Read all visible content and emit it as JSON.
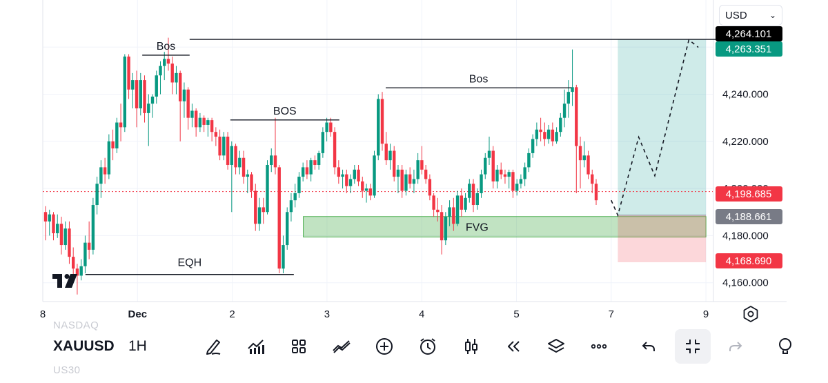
{
  "app": {
    "symbol": "XAUUSD",
    "timeframe": "1H",
    "symbol_above": "NASDAQ",
    "symbol_below": "US30",
    "currency": "USD"
  },
  "chart_data": {
    "type": "candlestick",
    "price_axis_ticks": [
      "4,160.000",
      "4,180.000",
      "4,200.000",
      "4,220.000",
      "4,240.000"
    ],
    "price_axis_values": [
      4160,
      4180,
      4200,
      4220,
      4240
    ],
    "time_axis_ticks": [
      {
        "label": "8",
        "value": 8
      },
      {
        "label": "Dec",
        "value": 9
      },
      {
        "label": "2",
        "value": 10
      },
      {
        "label": "3",
        "value": 11
      },
      {
        "label": "4",
        "value": 12
      },
      {
        "label": "5",
        "value": 13
      },
      {
        "label": "7",
        "value": 14
      },
      {
        "label": "9",
        "value": 15
      }
    ],
    "ylim": [
      4152,
      4280
    ],
    "xlim": [
      8,
      15.33
    ],
    "price_tags": [
      {
        "label": "4,264.101",
        "value": 4264.101,
        "color": "#000000"
      },
      {
        "label": "4,263.351",
        "value": 4263.351,
        "color": "#089981"
      },
      {
        "label": "4,198.685",
        "value": 4198.685,
        "color": "#f23645"
      },
      {
        "label": "4,188.661",
        "value": 4188.661,
        "color": "#787b86"
      },
      {
        "label": "4,168.690",
        "value": 4168.69,
        "color": "#f23645"
      }
    ],
    "current_price": 4198.685,
    "annotations": [
      {
        "text": "Bos",
        "x1": 9.05,
        "x2": 9.55,
        "y": 4256.6
      },
      {
        "text": "BOS",
        "x1": 9.98,
        "x2": 11.13,
        "y": 4229.1
      },
      {
        "text": "Bos",
        "x1": 11.62,
        "x2": 13.58,
        "y": 4242.7
      },
      {
        "text": "EQH",
        "x1": 8.45,
        "x2": 10.65,
        "y": 4163.5
      }
    ],
    "long_line": {
      "x1": 9.55,
      "x2": 15.33,
      "y": 4263.3
    },
    "fvg": {
      "text": "FVG",
      "x1": 10.75,
      "x2": 15.0,
      "y_top": 4188.1,
      "y_bottom": 4179.4
    },
    "position": {
      "x1": 14.07,
      "x2": 15.0,
      "target": 4263.35,
      "entry": 4188.66,
      "stop": 4168.69
    },
    "projection_path": [
      {
        "x": 14.0,
        "y": 4195.0
      },
      {
        "x": 14.07,
        "y": 4188.6
      },
      {
        "x": 14.29,
        "y": 4221.8
      },
      {
        "x": 14.46,
        "y": 4205.4
      },
      {
        "x": 14.82,
        "y": 4263.1
      },
      {
        "x": 14.92,
        "y": 4259.9
      }
    ],
    "colors": {
      "up": "#089981",
      "down": "#f23645",
      "fvg": "#4caf50",
      "long": "#26a69a",
      "short": "#f7a5ae"
    },
    "candles": [
      [
        4190.0,
        4192.5,
        4178.0,
        4186.0
      ],
      [
        4186.0,
        4191.0,
        4180.0,
        4189.0
      ],
      [
        4189.0,
        4190.0,
        4178.0,
        4181.0
      ],
      [
        4181.0,
        4189.0,
        4179.0,
        4185.0
      ],
      [
        4185.0,
        4188.0,
        4172.0,
        4176.0
      ],
      [
        4176.0,
        4186.0,
        4174.0,
        4183.0
      ],
      [
        4183.0,
        4186.0,
        4168.0,
        4171.0
      ],
      [
        4171.0,
        4175.0,
        4163.0,
        4166.0
      ],
      [
        4166.0,
        4168.0,
        4155.0,
        4163.0
      ],
      [
        4163.0,
        4170.0,
        4161.0,
        4167.0
      ],
      [
        4167.0,
        4180.0,
        4164.0,
        4177.0
      ],
      [
        4177.0,
        4186.0,
        4170.0,
        4174.0
      ],
      [
        4174.0,
        4196.0,
        4172.0,
        4193.0
      ],
      [
        4193.0,
        4205.0,
        4189.0,
        4202.0
      ],
      [
        4202.0,
        4212.0,
        4196.0,
        4209.0
      ],
      [
        4209.0,
        4213.0,
        4202.0,
        4206.0
      ],
      [
        4206.0,
        4223.0,
        4204.0,
        4220.0
      ],
      [
        4220.0,
        4225.0,
        4212.0,
        4217.0
      ],
      [
        4217.0,
        4230.0,
        4215.0,
        4228.0
      ],
      [
        4228.0,
        4236.0,
        4220.0,
        4226.0
      ],
      [
        4226.0,
        4257.0,
        4224.0,
        4256.0
      ],
      [
        4256.0,
        4257.0,
        4238.0,
        4242.0
      ],
      [
        4242.0,
        4249.0,
        4234.0,
        4246.0
      ],
      [
        4246.0,
        4250.0,
        4226.0,
        4234.0
      ],
      [
        4234.0,
        4249.0,
        4231.0,
        4246.0
      ],
      [
        4246.0,
        4248.0,
        4228.0,
        4232.0
      ],
      [
        4232.0,
        4240.0,
        4218.0,
        4236.0
      ],
      [
        4236.0,
        4240.0,
        4230.0,
        4239.0
      ],
      [
        4239.0,
        4250.0,
        4236.0,
        4248.0
      ],
      [
        4248.0,
        4254.0,
        4240.0,
        4252.0
      ],
      [
        4252.0,
        4258.0,
        4246.0,
        4255.0
      ],
      [
        4255.0,
        4264.0,
        4250.0,
        4253.0
      ],
      [
        4253.0,
        4256.0,
        4240.0,
        4245.0
      ],
      [
        4245.0,
        4252.0,
        4240.0,
        4249.0
      ],
      [
        4249.0,
        4250.0,
        4220.0,
        4237.0
      ],
      [
        4237.0,
        4245.0,
        4230.0,
        4242.0
      ],
      [
        4242.0,
        4243.0,
        4225.0,
        4230.0
      ],
      [
        4230.0,
        4236.0,
        4226.0,
        4233.0
      ],
      [
        4233.0,
        4234.0,
        4222.0,
        4226.0
      ],
      [
        4226.0,
        4232.0,
        4224.0,
        4230.0
      ],
      [
        4230.0,
        4231.0,
        4224.0,
        4227.0
      ],
      [
        4227.0,
        4230.0,
        4222.0,
        4229.0
      ],
      [
        4229.0,
        4230.0,
        4220.0,
        4224.0
      ],
      [
        4224.0,
        4226.0,
        4218.0,
        4222.0
      ],
      [
        4222.0,
        4225.0,
        4212.0,
        4214.0
      ],
      [
        4214.0,
        4224.0,
        4212.0,
        4222.0
      ],
      [
        4222.0,
        4224.0,
        4208.0,
        4210.0
      ],
      [
        4210.0,
        4220.0,
        4190.0,
        4218.0
      ],
      [
        4218.0,
        4219.0,
        4206.0,
        4209.0
      ],
      [
        4209.0,
        4216.0,
        4206.0,
        4213.0
      ],
      [
        4213.0,
        4216.0,
        4202.0,
        4205.0
      ],
      [
        4205.0,
        4208.0,
        4198.0,
        4206.0
      ],
      [
        4206.0,
        4207.0,
        4196.0,
        4199.0
      ],
      [
        4199.0,
        4202.0,
        4182.0,
        4185.0
      ],
      [
        4185.0,
        4196.0,
        4182.0,
        4192.0
      ],
      [
        4192.0,
        4196.0,
        4185.0,
        4190.0
      ],
      [
        4190.0,
        4212.0,
        4189.0,
        4210.0
      ],
      [
        4210.0,
        4217.0,
        4207.0,
        4214.0
      ],
      [
        4214.0,
        4230.0,
        4206.0,
        4209.0
      ],
      [
        4209.0,
        4210.0,
        4164.0,
        4166.0
      ],
      [
        4166.0,
        4180.0,
        4164.0,
        4176.0
      ],
      [
        4176.0,
        4192.0,
        4174.0,
        4190.0
      ],
      [
        4190.0,
        4198.0,
        4186.0,
        4195.0
      ],
      [
        4195.0,
        4202.0,
        4192.0,
        4198.0
      ],
      [
        4198.0,
        4207.0,
        4196.0,
        4205.0
      ],
      [
        4205.0,
        4211.0,
        4203.0,
        4209.0
      ],
      [
        4209.0,
        4212.0,
        4204.0,
        4206.0
      ],
      [
        4206.0,
        4213.0,
        4203.0,
        4212.0
      ],
      [
        4212.0,
        4214.0,
        4208.0,
        4210.0
      ],
      [
        4210.0,
        4216.0,
        4208.0,
        4215.0
      ],
      [
        4215.0,
        4226.0,
        4213.0,
        4224.0
      ],
      [
        4224.0,
        4230.0,
        4220.0,
        4228.0
      ],
      [
        4228.0,
        4230.0,
        4222.0,
        4224.0
      ],
      [
        4224.0,
        4226.0,
        4206.0,
        4209.0
      ],
      [
        4209.0,
        4212.0,
        4202.0,
        4205.0
      ],
      [
        4205.0,
        4208.0,
        4200.0,
        4206.0
      ],
      [
        4206.0,
        4208.0,
        4198.0,
        4201.0
      ],
      [
        4201.0,
        4206.0,
        4198.0,
        4204.0
      ],
      [
        4204.0,
        4210.0,
        4202.0,
        4208.0
      ],
      [
        4208.0,
        4210.0,
        4201.0,
        4203.0
      ],
      [
        4203.0,
        4205.0,
        4196.0,
        4199.0
      ],
      [
        4199.0,
        4202.0,
        4194.0,
        4200.0
      ],
      [
        4200.0,
        4202.0,
        4195.0,
        4197.0
      ],
      [
        4197.0,
        4216.0,
        4196.0,
        4214.0
      ],
      [
        4214.0,
        4240.0,
        4212.0,
        4238.0
      ],
      [
        4238.0,
        4241.0,
        4216.0,
        4219.0
      ],
      [
        4219.0,
        4224.0,
        4210.0,
        4212.0
      ],
      [
        4212.0,
        4219.0,
        4208.0,
        4216.0
      ],
      [
        4216.0,
        4218.0,
        4203.0,
        4205.0
      ],
      [
        4205.0,
        4210.0,
        4198.0,
        4208.0
      ],
      [
        4208.0,
        4210.0,
        4196.0,
        4199.0
      ],
      [
        4199.0,
        4208.0,
        4197.0,
        4206.0
      ],
      [
        4206.0,
        4209.0,
        4200.0,
        4202.0
      ],
      [
        4202.0,
        4208.0,
        4198.0,
        4204.0
      ],
      [
        4204.0,
        4215.0,
        4202.0,
        4212.0
      ],
      [
        4212.0,
        4218.0,
        4206.0,
        4208.0
      ],
      [
        4208.0,
        4210.0,
        4202.0,
        4204.0
      ],
      [
        4204.0,
        4206.0,
        4195.0,
        4197.0
      ],
      [
        4197.0,
        4198.0,
        4188.0,
        4191.0
      ],
      [
        4191.0,
        4196.0,
        4186.0,
        4190.0
      ],
      [
        4190.0,
        4193.0,
        4172.0,
        4178.0
      ],
      [
        4178.0,
        4190.0,
        4176.0,
        4188.0
      ],
      [
        4188.0,
        4195.0,
        4184.0,
        4192.0
      ],
      [
        4192.0,
        4196.0,
        4182.0,
        4185.0
      ],
      [
        4185.0,
        4199.0,
        4184.0,
        4197.0
      ],
      [
        4197.0,
        4200.0,
        4188.0,
        4191.0
      ],
      [
        4191.0,
        4198.0,
        4190.0,
        4196.0
      ],
      [
        4196.0,
        4204.0,
        4194.0,
        4202.0
      ],
      [
        4202.0,
        4204.0,
        4190.0,
        4193.0
      ],
      [
        4193.0,
        4200.0,
        4191.0,
        4198.0
      ],
      [
        4198.0,
        4208.0,
        4196.0,
        4206.0
      ],
      [
        4206.0,
        4215.0,
        4204.0,
        4213.0
      ],
      [
        4213.0,
        4222.0,
        4210.0,
        4216.0
      ],
      [
        4216.0,
        4218.0,
        4200.0,
        4203.0
      ],
      [
        4203.0,
        4210.0,
        4200.0,
        4208.0
      ],
      [
        4208.0,
        4211.0,
        4204.0,
        4206.0
      ],
      [
        4206.0,
        4208.0,
        4202.0,
        4205.0
      ],
      [
        4205.0,
        4208.0,
        4200.0,
        4207.0
      ],
      [
        4207.0,
        4208.0,
        4196.0,
        4199.0
      ],
      [
        4199.0,
        4204.0,
        4197.0,
        4202.0
      ],
      [
        4202.0,
        4206.0,
        4200.0,
        4204.0
      ],
      [
        4204.0,
        4211.0,
        4201.0,
        4209.0
      ],
      [
        4209.0,
        4217.0,
        4207.0,
        4215.0
      ],
      [
        4215.0,
        4223.0,
        4213.0,
        4221.0
      ],
      [
        4221.0,
        4228.0,
        4218.0,
        4225.0
      ],
      [
        4225.0,
        4230.0,
        4220.0,
        4224.0
      ],
      [
        4224.0,
        4228.0,
        4218.0,
        4221.0
      ],
      [
        4221.0,
        4227.0,
        4219.0,
        4225.0
      ],
      [
        4225.0,
        4228.0,
        4218.0,
        4220.0
      ],
      [
        4220.0,
        4226.0,
        4219.0,
        4224.0
      ],
      [
        4224.0,
        4232.0,
        4222.0,
        4230.0
      ],
      [
        4230.0,
        4242.0,
        4226.0,
        4236.0
      ],
      [
        4236.0,
        4246.0,
        4230.0,
        4241.0
      ],
      [
        4241.0,
        4259.0,
        4235.0,
        4243.0
      ],
      [
        4243.0,
        4244.0,
        4198.0,
        4218.0
      ],
      [
        4218.0,
        4222.0,
        4200.0,
        4212.0
      ],
      [
        4212.0,
        4220.0,
        4209.0,
        4214.0
      ],
      [
        4214.0,
        4216.0,
        4204.0,
        4206.0
      ],
      [
        4206.0,
        4208.0,
        4198.0,
        4202.0
      ],
      [
        4202.0,
        4204.0,
        4193.0,
        4195.0
      ]
    ]
  }
}
